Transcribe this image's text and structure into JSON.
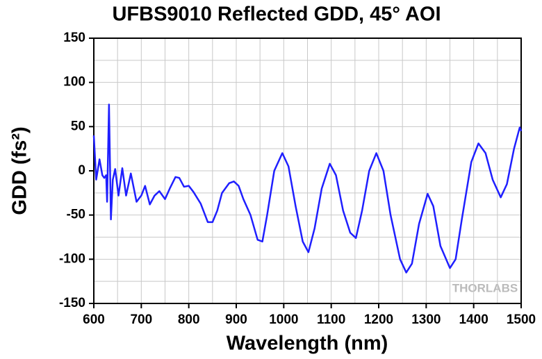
{
  "chart_data": {
    "type": "line",
    "title": "UFBS9010 Reflected GDD, 45° AOI",
    "xlabel": "Wavelength (nm)",
    "ylabel": "GDD (fs²)",
    "watermark": "THORLABS",
    "xlim": [
      600,
      1500
    ],
    "ylim": [
      -150,
      150
    ],
    "xticks": [
      600,
      700,
      800,
      900,
      1000,
      1100,
      1200,
      1300,
      1400,
      1500
    ],
    "yticks": [
      -150,
      -100,
      -50,
      0,
      50,
      100,
      150
    ],
    "xminorticks": [
      650,
      750,
      850,
      950,
      1050,
      1150,
      1250,
      1350,
      1450
    ],
    "yminorticks": [
      -125,
      -75,
      -25,
      25,
      75,
      125
    ],
    "grid": true,
    "x": [
      600,
      605,
      612,
      618,
      622,
      626,
      628,
      632,
      636,
      640,
      645,
      652,
      660,
      668,
      678,
      690,
      700,
      708,
      718,
      728,
      738,
      750,
      760,
      772,
      780,
      790,
      800,
      810,
      825,
      840,
      850,
      860,
      870,
      885,
      895,
      905,
      915,
      930,
      945,
      955,
      965,
      980,
      997,
      1010,
      1025,
      1040,
      1052,
      1065,
      1080,
      1097,
      1110,
      1125,
      1140,
      1152,
      1165,
      1180,
      1195,
      1210,
      1225,
      1245,
      1258,
      1270,
      1285,
      1303,
      1315,
      1330,
      1350,
      1362,
      1375,
      1395,
      1410,
      1425,
      1440,
      1457,
      1470,
      1485,
      1497,
      1500
    ],
    "series": [
      {
        "name": "GDD",
        "color": "#1f1fff",
        "values": [
          40,
          -10,
          13,
          -5,
          -8,
          -5,
          -35,
          75,
          -55,
          -10,
          2,
          -28,
          3,
          -28,
          -3,
          -35,
          -28,
          -17,
          -38,
          -28,
          -23,
          -32,
          -20,
          -7,
          -8,
          -18,
          -17,
          -24,
          -37,
          -58,
          -58,
          -45,
          -25,
          -14,
          -12,
          -17,
          -32,
          -50,
          -78,
          -80,
          -50,
          0,
          20,
          5,
          -40,
          -80,
          -92,
          -65,
          -20,
          8,
          -5,
          -45,
          -70,
          -76,
          -45,
          0,
          20,
          0,
          -50,
          -100,
          -115,
          -105,
          -60,
          -26,
          -40,
          -85,
          -110,
          -100,
          -55,
          10,
          31,
          20,
          -10,
          -30,
          -15,
          25,
          49,
          45
        ]
      }
    ]
  }
}
